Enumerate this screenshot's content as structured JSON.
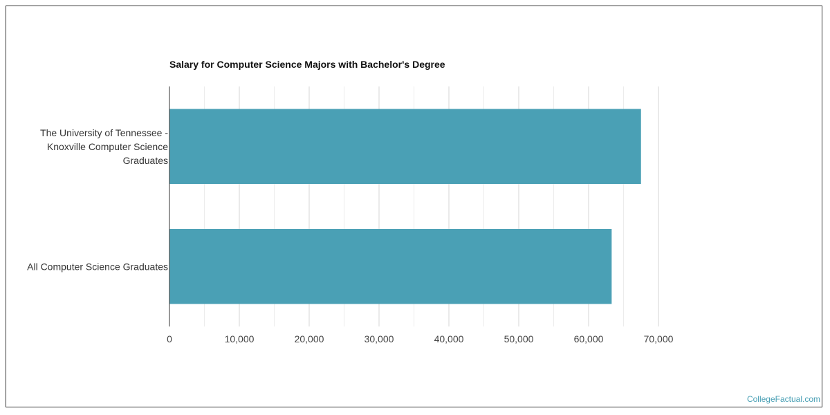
{
  "chart_data": {
    "type": "bar",
    "orientation": "horizontal",
    "title": "Salary for Computer Science Majors with Bachelor's Degree",
    "categories": [
      [
        "The University of Tennessee -",
        "Knoxville Computer Science",
        "Graduates"
      ],
      [
        "All Computer Science Graduates"
      ]
    ],
    "values": [
      67500,
      63300
    ],
    "xlim": [
      0,
      70000
    ],
    "x_ticks": [
      0,
      10000,
      20000,
      30000,
      40000,
      50000,
      60000,
      70000
    ],
    "x_tick_labels": [
      "0",
      "10,000",
      "20,000",
      "30,000",
      "40,000",
      "50,000",
      "60,000",
      "70,000"
    ],
    "bar_color": "#4aa0b5",
    "grid": true,
    "legend": "none"
  },
  "footer": {
    "credit": "CollegeFactual.com"
  },
  "colors": {
    "bar": "#4aa0b5",
    "grid": "#e0e0e0",
    "axis": "#333333"
  }
}
